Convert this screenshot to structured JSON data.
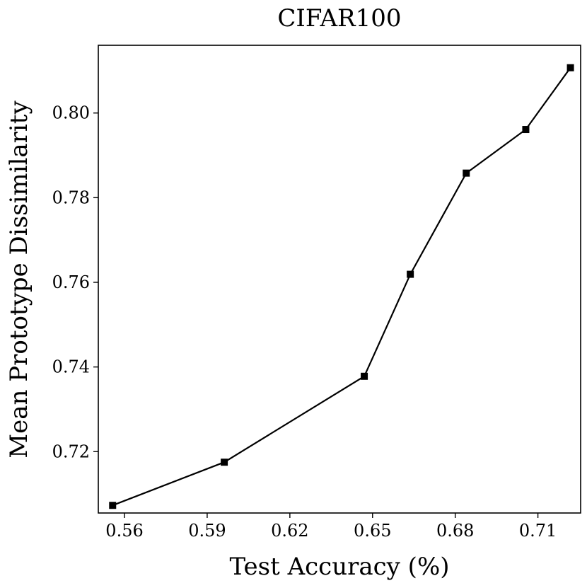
{
  "chart_data": {
    "type": "line",
    "title": "CIFAR100",
    "xlabel": "Test Accuracy (%)",
    "ylabel": "Mean Prototype Dissimilarity",
    "xlim": [
      0.5505,
      0.7255
    ],
    "ylim": [
      0.7055,
      0.816
    ],
    "xticks": [
      0.56,
      0.59,
      0.62,
      0.65,
      0.68,
      0.71
    ],
    "xtick_labels": [
      "0.56",
      "0.59",
      "0.62",
      "0.65",
      "0.68",
      "0.71"
    ],
    "yticks": [
      0.72,
      0.74,
      0.76,
      0.78,
      0.8
    ],
    "ytick_labels": [
      "0.72",
      "0.74",
      "0.76",
      "0.78",
      "0.80"
    ],
    "grid": false,
    "series": [
      {
        "marker": "square",
        "color": "#000000",
        "x": [
          0.5557,
          0.5962,
          0.647,
          0.6637,
          0.684,
          0.7056,
          0.7218
        ],
        "y": [
          0.7073,
          0.7175,
          0.7378,
          0.7619,
          0.7858,
          0.7961,
          0.8107
        ]
      }
    ]
  }
}
